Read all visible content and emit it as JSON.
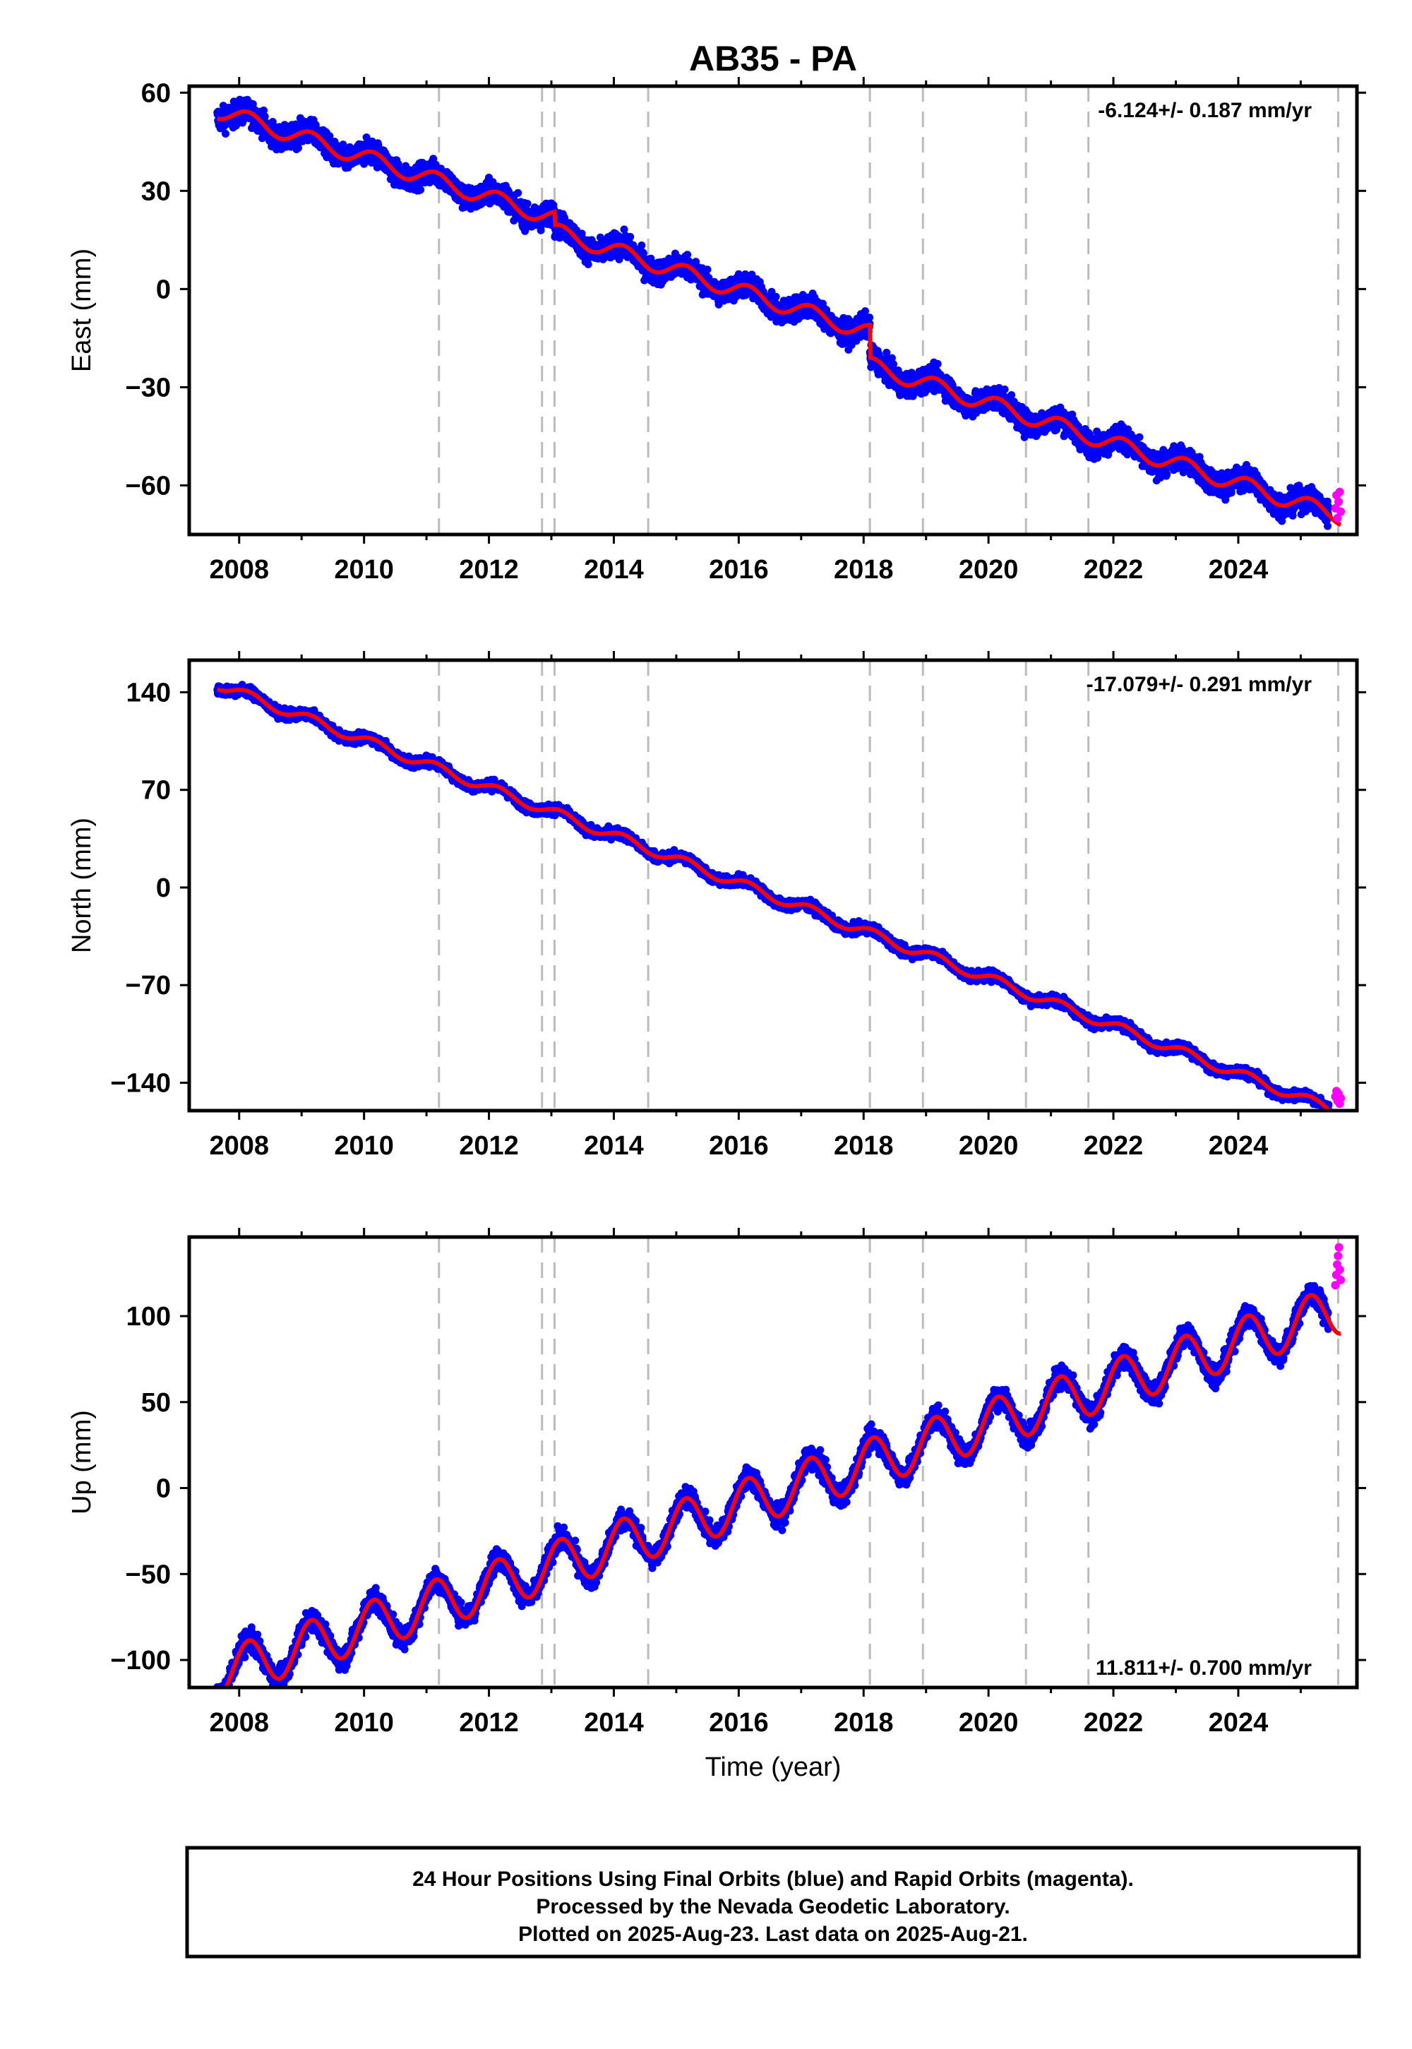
{
  "title": "AB35 - PA",
  "xlabel": "Time (year)",
  "colors": {
    "final_orbits": "#0000ff",
    "rapid_orbits": "#ff00ff",
    "model": "#ff0000",
    "events": "#bbbbbb",
    "frame": "#000000"
  },
  "footer": {
    "line1": "24 Hour Positions Using Final Orbits (blue) and Rapid Orbits (magenta).",
    "line2": "Processed by the Nevada Geodetic Laboratory.",
    "line3": "Plotted on 2025-Aug-23. Last data on 2025-Aug-21."
  },
  "chart_data": [
    {
      "type": "scatter",
      "component": "East",
      "ylabel": "East (mm)",
      "rate_text": "-6.124+/- 0.187 mm/yr",
      "rate_position": "top-right",
      "xlim": [
        2007.2,
        2025.9
      ],
      "ylim": [
        -75,
        62
      ],
      "xticks": [
        2008,
        2010,
        2012,
        2014,
        2016,
        2018,
        2020,
        2022,
        2024
      ],
      "xtick_labels": [
        "2008",
        "2010",
        "2012",
        "2014",
        "2016",
        "2018",
        "2020",
        "2022",
        "2024"
      ],
      "yticks": [
        60,
        30,
        0,
        -30,
        -60
      ],
      "ytick_labels": [
        "60",
        "30",
        "0",
        "−30",
        "−60"
      ],
      "event_lines": [
        2011.2,
        2012.85,
        2013.05,
        2014.55,
        2018.1,
        2018.95,
        2020.6,
        2021.6,
        2025.6
      ],
      "model_trend": {
        "rate": -6.124,
        "value_at_2016": 3.5,
        "seasonal_amplitude": 2.5
      },
      "scatter": 4.0,
      "offsets": [
        {
          "year": 2013.05,
          "step": -4
        },
        {
          "year": 2018.1,
          "step": -10
        }
      ],
      "first_year": 2007.65,
      "last_final_year": 2025.45,
      "last_data_year": 2025.64,
      "rapid_values": [
        -67,
        -63,
        -70,
        -65,
        -62,
        -68
      ]
    },
    {
      "type": "scatter",
      "component": "North",
      "ylabel": "North (mm)",
      "rate_text": "-17.079+/- 0.291 mm/yr",
      "rate_position": "top-right",
      "xlim": [
        2007.2,
        2025.9
      ],
      "ylim": [
        -160,
        163
      ],
      "xticks": [
        2008,
        2010,
        2012,
        2014,
        2016,
        2018,
        2020,
        2022,
        2024
      ],
      "xtick_labels": [
        "2008",
        "2010",
        "2012",
        "2014",
        "2016",
        "2018",
        "2020",
        "2022",
        "2024"
      ],
      "yticks": [
        140,
        70,
        0,
        -70,
        -140
      ],
      "ytick_labels": [
        "140",
        "70",
        "0",
        "−70",
        "−140"
      ],
      "event_lines": [
        2011.2,
        2012.85,
        2013.05,
        2014.55,
        2018.1,
        2018.95,
        2020.6,
        2021.6,
        2025.6
      ],
      "model_trend": {
        "rate": -17.079,
        "value_at_2016": 3.0,
        "seasonal_amplitude": 3.5
      },
      "scatter": 4.0,
      "offsets": [],
      "first_year": 2007.65,
      "last_final_year": 2025.45,
      "last_data_year": 2025.64,
      "rapid_values": [
        -150,
        -146,
        -153,
        -148,
        -155,
        -151
      ]
    },
    {
      "type": "scatter",
      "component": "Up",
      "ylabel": "Up (mm)",
      "rate_text": "11.811+/- 0.700 mm/yr",
      "rate_position": "bottom-right",
      "xlim": [
        2007.2,
        2025.9
      ],
      "ylim": [
        -116,
        146
      ],
      "xticks": [
        2008,
        2010,
        2012,
        2014,
        2016,
        2018,
        2020,
        2022,
        2024
      ],
      "xtick_labels": [
        "2008",
        "2010",
        "2012",
        "2014",
        "2016",
        "2018",
        "2020",
        "2022",
        "2024"
      ],
      "yticks": [
        100,
        50,
        0,
        -50,
        -100
      ],
      "ytick_labels": [
        "100",
        "50",
        "0",
        "−50",
        "−100"
      ],
      "event_lines": [
        2011.2,
        2012.85,
        2013.05,
        2014.55,
        2018.1,
        2018.95,
        2020.6,
        2021.6,
        2025.6
      ],
      "model_trend": {
        "rate": 11.811,
        "value_at_2016": -10.0,
        "seasonal_amplitude": 14.0
      },
      "scatter": 7.0,
      "offsets": [],
      "first_year": 2007.65,
      "last_final_year": 2025.45,
      "last_data_year": 2025.64,
      "rapid_values": [
        118,
        124,
        130,
        135,
        140,
        127,
        121
      ]
    }
  ]
}
